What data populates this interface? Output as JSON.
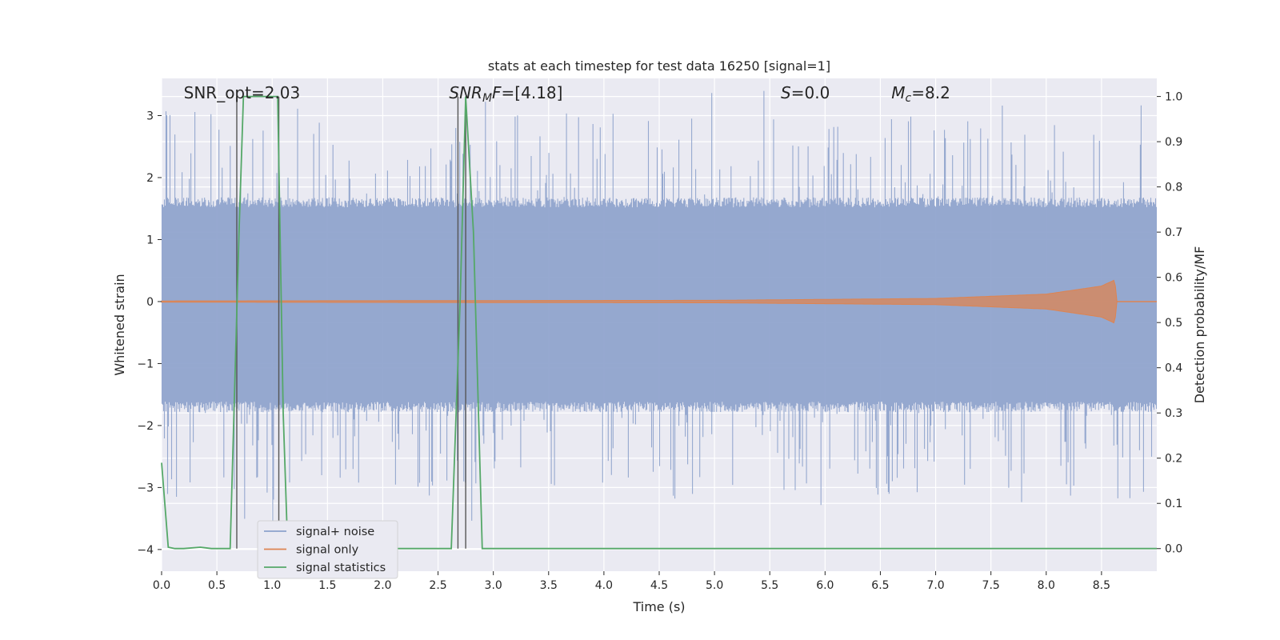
{
  "chart_data": {
    "type": "line",
    "title": "stats at each timestep for test data 16250 [signal=1]",
    "xlabel": "Time (s)",
    "ylabel": "Whitened strain",
    "y2label": "Detection probability/MF",
    "xlim": [
      0.0,
      9.0
    ],
    "ylim": [
      -4.35,
      3.6
    ],
    "y2lim": [
      -0.05,
      1.04
    ],
    "xticks": [
      "0.0",
      "0.5",
      "1.0",
      "1.5",
      "2.0",
      "2.5",
      "3.0",
      "3.5",
      "4.0",
      "4.5",
      "5.0",
      "5.5",
      "6.0",
      "6.5",
      "7.0",
      "7.5",
      "8.0",
      "8.5"
    ],
    "yticks": [
      "3",
      "2",
      "1",
      "0",
      "−1",
      "−2",
      "−3",
      "−4"
    ],
    "y2ticks": [
      "1.0",
      "0.9",
      "0.8",
      "0.7",
      "0.6",
      "0.5",
      "0.4",
      "0.3",
      "0.2",
      "0.1",
      "0.0"
    ],
    "grid": true,
    "legend_position": "lower-left",
    "annotations": [
      {
        "text": "SNR_opt=2.03",
        "x": 0.2
      },
      {
        "text": "SNR_MF=[4.18]",
        "x": 2.6
      },
      {
        "text": "S=0.0",
        "x": 5.6
      },
      {
        "text": "M_c=8.2",
        "x": 6.6
      }
    ],
    "series": [
      {
        "name": "signal+ noise",
        "color": "#8da2cc",
        "axis": "left",
        "kind": "whitened noise, amplitude approx ±1.6 with spikes to ±3.6",
        "x_range": [
          0.0,
          9.0
        ],
        "values_summary": {
          "typical_min": -1.7,
          "typical_max": 1.6,
          "peak_min": -4.0,
          "peak_max": 3.6
        }
      },
      {
        "name": "signal only",
        "color": "#dd8452",
        "axis": "left",
        "kind": "chirp growing in amplitude, merger near t=8.6",
        "envelope": {
          "t": [
            0.0,
            5.0,
            7.0,
            8.0,
            8.5,
            8.62,
            8.64
          ],
          "amp": [
            0.01,
            0.02,
            0.05,
            0.12,
            0.25,
            0.35,
            0.0
          ]
        }
      },
      {
        "name": "signal statistics",
        "color": "#55a868",
        "axis": "right",
        "x": [
          0.0,
          0.06,
          0.12,
          0.2,
          0.35,
          0.45,
          0.6,
          0.62,
          0.7,
          0.74,
          1.05,
          1.1,
          1.14,
          1.2,
          1.5,
          2.0,
          2.62,
          2.7,
          2.75,
          2.82,
          2.9,
          3.0,
          4.0,
          5.0,
          6.0,
          7.0,
          8.0,
          9.0
        ],
        "values": [
          0.19,
          0.003,
          0.0,
          0.0,
          0.003,
          0.0,
          0.0,
          0.0,
          0.7,
          1.0,
          1.0,
          0.3,
          0.0,
          0.0,
          0.0,
          0.0,
          0.0,
          0.55,
          1.0,
          0.7,
          0.0,
          0.0,
          0.0,
          0.0,
          0.0,
          0.0,
          0.0,
          0.0
        ]
      }
    ],
    "vertical_markers": {
      "color": "#555555",
      "x": [
        0.68,
        1.06,
        2.68,
        2.75
      ]
    }
  }
}
